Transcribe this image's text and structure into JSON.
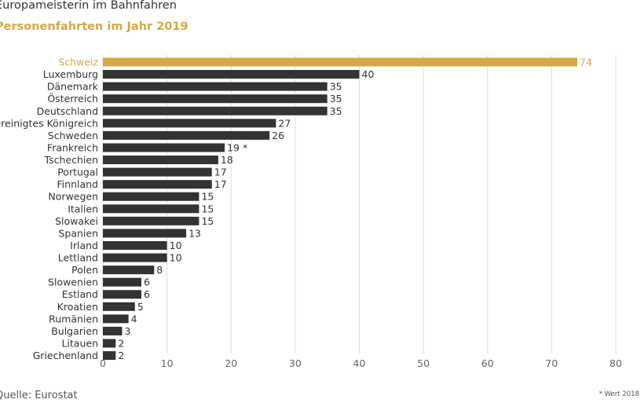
{
  "chart_data": {
    "type": "bar",
    "orientation": "horizontal",
    "title": "Europameisterin im Bahnfahren",
    "subtitle": "Personenfahrten im Jahr 2019",
    "categories": [
      "Schweiz",
      "Luxemburg",
      "Dänemark",
      "Österreich",
      "Deutschland",
      "Vereinigtes Königreich",
      "Schweden",
      "Frankreich",
      "Tschechien",
      "Portugal",
      "Finnland",
      "Norwegen",
      "Italien",
      "Slowakei",
      "Spanien",
      "Irland",
      "Lettland",
      "Polen",
      "Slowenien",
      "Estland",
      "Kroatien",
      "Rumänien",
      "Bulgarien",
      "Litauen",
      "Griechenland"
    ],
    "values": [
      74,
      40,
      35,
      35,
      35,
      27,
      26,
      19,
      18,
      17,
      17,
      15,
      15,
      15,
      13,
      10,
      10,
      8,
      6,
      6,
      5,
      4,
      3,
      2,
      2
    ],
    "value_suffixes": {
      "Frankreich": " *"
    },
    "highlight": "Schweiz",
    "xlim": [
      0,
      80
    ],
    "xticks": [
      0,
      10,
      20,
      30,
      40,
      50,
      60,
      70,
      80
    ],
    "grid": true,
    "xlabel": "",
    "ylabel": "",
    "source": "Quelle: Eurostat",
    "footnote": "* Wert 2018",
    "colors": {
      "highlight": "#d4a846",
      "default": "#333333",
      "grid": "#dcdcdc"
    }
  }
}
